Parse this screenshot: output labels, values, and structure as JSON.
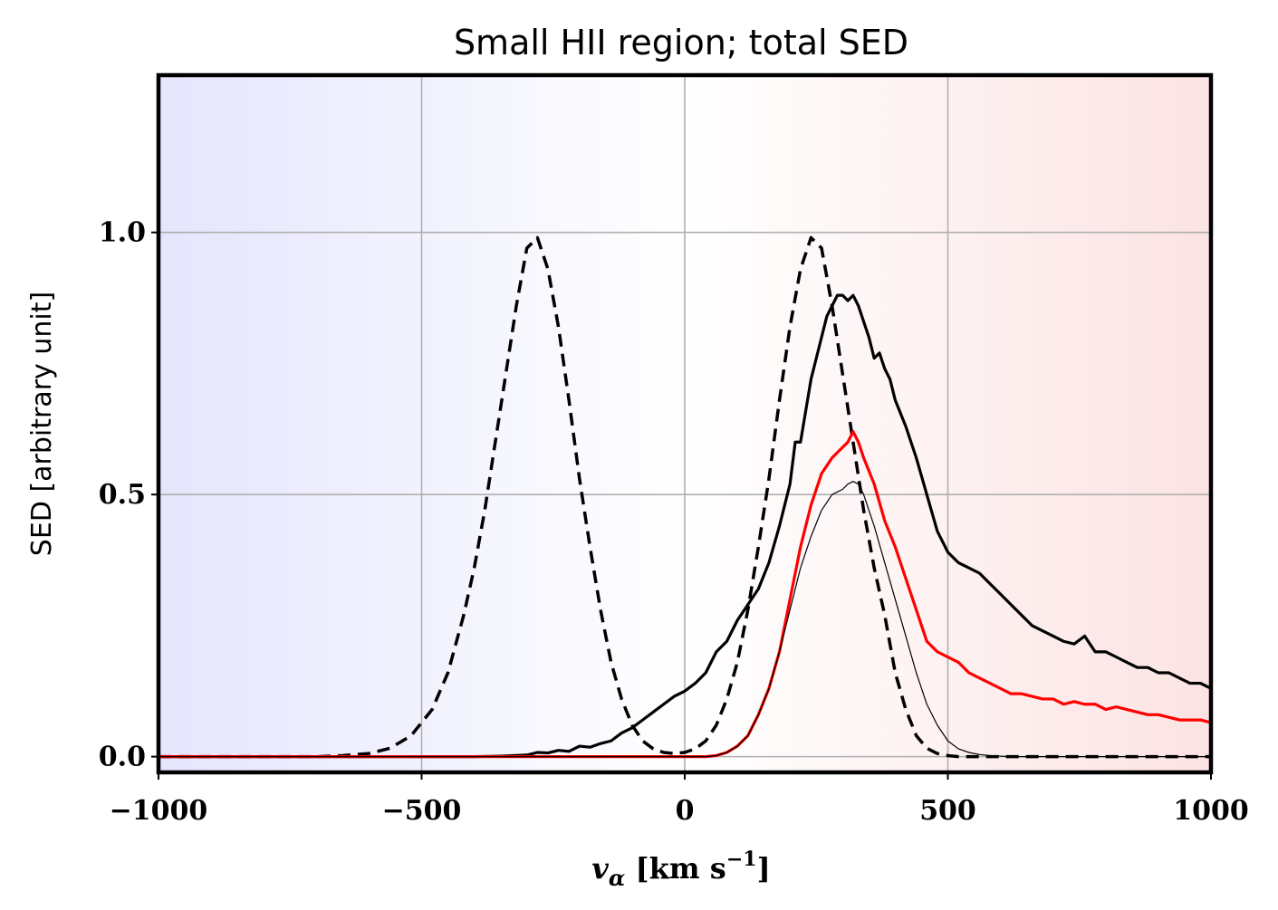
{
  "chart_data": {
    "type": "line",
    "title": "Small HII region; total SED",
    "ylabel": "SED [arbitrary unit]",
    "xlabel": {
      "var": "v",
      "sub": "α",
      "unit_open": " [km s",
      "exp": "−1",
      "unit_close": "]"
    },
    "xlim": [
      -1000,
      1000
    ],
    "ylim": [
      -0.03,
      1.3
    ],
    "xticks": [
      {
        "value": -1000,
        "label": "−1000"
      },
      {
        "value": -500,
        "label": "−500"
      },
      {
        "value": 0,
        "label": "0"
      },
      {
        "value": 500,
        "label": "500"
      },
      {
        "value": 1000,
        "label": "1000"
      }
    ],
    "yticks": [
      {
        "value": 0.0,
        "label": "0.0"
      },
      {
        "value": 0.5,
        "label": "0.5"
      },
      {
        "value": 1.0,
        "label": "1.0"
      }
    ],
    "grid": true,
    "legend": "none",
    "background_gradient": {
      "left": "#e5e5fd",
      "center": "#ffffff",
      "right": "#fce3e3"
    },
    "series": [
      {
        "style": "dashed",
        "color": "#000000",
        "x": [
          -1000,
          -700,
          -650,
          -600,
          -560,
          -520,
          -480,
          -450,
          -420,
          -400,
          -380,
          -360,
          -340,
          -320,
          -300,
          -280,
          -260,
          -240,
          -220,
          -200,
          -180,
          -160,
          -140,
          -120,
          -100,
          -80,
          -60,
          -40,
          -20,
          0,
          20,
          40,
          60,
          80,
          100,
          120,
          140,
          160,
          180,
          200,
          220,
          240,
          260,
          280,
          300,
          320,
          340,
          360,
          380,
          400,
          420,
          440,
          460,
          480,
          500,
          520,
          560,
          600,
          650,
          700,
          1000
        ],
        "y": [
          0.0,
          0.0,
          0.002,
          0.006,
          0.016,
          0.04,
          0.09,
          0.16,
          0.27,
          0.36,
          0.47,
          0.6,
          0.73,
          0.86,
          0.97,
          0.99,
          0.93,
          0.82,
          0.68,
          0.53,
          0.4,
          0.28,
          0.18,
          0.11,
          0.06,
          0.03,
          0.015,
          0.008,
          0.006,
          0.008,
          0.015,
          0.03,
          0.06,
          0.11,
          0.18,
          0.28,
          0.4,
          0.53,
          0.68,
          0.82,
          0.93,
          0.99,
          0.97,
          0.86,
          0.73,
          0.6,
          0.47,
          0.36,
          0.27,
          0.16,
          0.09,
          0.04,
          0.016,
          0.006,
          0.002,
          0.0,
          0.0,
          0.0,
          0.0,
          0.0,
          0.0
        ]
      },
      {
        "style": "solid",
        "color": "#000000",
        "x": [
          -1000,
          -400,
          -350,
          -300,
          -280,
          -260,
          -240,
          -220,
          -200,
          -180,
          -160,
          -140,
          -120,
          -100,
          -80,
          -60,
          -40,
          -20,
          0,
          20,
          40,
          60,
          80,
          100,
          120,
          140,
          160,
          180,
          200,
          210,
          220,
          230,
          240,
          250,
          260,
          270,
          280,
          290,
          300,
          310,
          320,
          330,
          340,
          350,
          360,
          370,
          380,
          390,
          400,
          420,
          440,
          460,
          480,
          500,
          520,
          540,
          560,
          580,
          600,
          620,
          640,
          660,
          680,
          700,
          720,
          740,
          760,
          780,
          800,
          820,
          840,
          860,
          880,
          900,
          920,
          940,
          960,
          980,
          1000
        ],
        "y": [
          0.0,
          0.0,
          0.001,
          0.003,
          0.008,
          0.007,
          0.012,
          0.01,
          0.02,
          0.018,
          0.025,
          0.03,
          0.045,
          0.055,
          0.07,
          0.085,
          0.1,
          0.115,
          0.125,
          0.14,
          0.16,
          0.2,
          0.22,
          0.26,
          0.29,
          0.32,
          0.37,
          0.44,
          0.52,
          0.6,
          0.6,
          0.66,
          0.72,
          0.76,
          0.8,
          0.84,
          0.86,
          0.88,
          0.88,
          0.87,
          0.88,
          0.86,
          0.83,
          0.8,
          0.76,
          0.77,
          0.74,
          0.72,
          0.68,
          0.63,
          0.57,
          0.5,
          0.43,
          0.39,
          0.37,
          0.36,
          0.35,
          0.33,
          0.31,
          0.29,
          0.27,
          0.25,
          0.24,
          0.23,
          0.22,
          0.215,
          0.23,
          0.2,
          0.2,
          0.19,
          0.18,
          0.17,
          0.17,
          0.16,
          0.16,
          0.15,
          0.14,
          0.14,
          0.13
        ]
      },
      {
        "style": "solid",
        "color": "#ff0000",
        "x": [
          -1000,
          40,
          60,
          80,
          100,
          120,
          140,
          160,
          180,
          200,
          220,
          240,
          260,
          280,
          300,
          310,
          320,
          330,
          340,
          360,
          380,
          400,
          420,
          440,
          460,
          480,
          500,
          520,
          540,
          560,
          580,
          600,
          620,
          640,
          660,
          680,
          700,
          720,
          740,
          760,
          780,
          800,
          820,
          840,
          860,
          880,
          900,
          920,
          940,
          960,
          980,
          1000
        ],
        "y": [
          0.0,
          0.0,
          0.002,
          0.008,
          0.02,
          0.04,
          0.08,
          0.13,
          0.2,
          0.3,
          0.4,
          0.48,
          0.54,
          0.57,
          0.59,
          0.6,
          0.62,
          0.6,
          0.57,
          0.52,
          0.45,
          0.4,
          0.34,
          0.28,
          0.22,
          0.2,
          0.19,
          0.18,
          0.16,
          0.15,
          0.14,
          0.13,
          0.12,
          0.12,
          0.115,
          0.11,
          0.11,
          0.1,
          0.105,
          0.1,
          0.1,
          0.09,
          0.095,
          0.09,
          0.085,
          0.08,
          0.08,
          0.075,
          0.07,
          0.07,
          0.07,
          0.065
        ]
      },
      {
        "style": "thin",
        "color": "#000000",
        "x": [
          -1000,
          40,
          60,
          80,
          100,
          120,
          140,
          160,
          180,
          200,
          220,
          240,
          260,
          280,
          300,
          310,
          320,
          330,
          340,
          360,
          380,
          400,
          420,
          440,
          460,
          480,
          500,
          520,
          540,
          560,
          580,
          600,
          620,
          1000
        ],
        "y": [
          0.0,
          0.0,
          0.002,
          0.008,
          0.02,
          0.04,
          0.08,
          0.13,
          0.2,
          0.28,
          0.36,
          0.42,
          0.47,
          0.5,
          0.51,
          0.52,
          0.525,
          0.52,
          0.5,
          0.44,
          0.37,
          0.3,
          0.23,
          0.16,
          0.1,
          0.06,
          0.03,
          0.015,
          0.008,
          0.004,
          0.002,
          0.001,
          0.0,
          0.0
        ]
      }
    ]
  }
}
